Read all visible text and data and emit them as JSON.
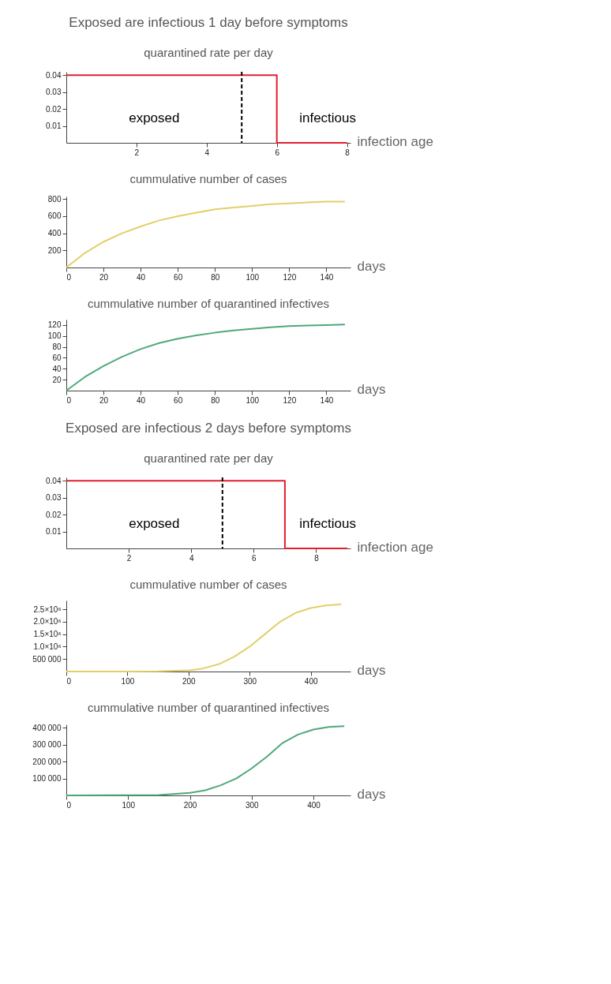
{
  "chart_data": [
    {
      "type": "step",
      "title": "Exposed are infectious 1 day before symptoms",
      "subtitle": "quarantined rate per day",
      "xlabel": "infection age",
      "x": [
        0,
        6,
        8
      ],
      "series": [
        {
          "color": "#e0202f",
          "values": [
            0.04,
            0,
            0
          ]
        }
      ],
      "xlim": [
        0,
        8.1
      ],
      "xticks": [
        2,
        4,
        6,
        8
      ],
      "ylim": [
        0,
        0.042
      ],
      "yticks": [
        0.01,
        0.02,
        0.03,
        0.04
      ],
      "ref_lines": [
        {
          "axis": "x",
          "value": 5,
          "color": "#000000",
          "line_style": "dashed"
        }
      ],
      "annotations": [
        "exposed",
        "infectious"
      ],
      "grid": false,
      "marker": "none",
      "line_style": "solid"
    },
    {
      "type": "line",
      "title": "cummulative number of cases",
      "xlabel": "days",
      "x": [
        0,
        10,
        20,
        30,
        40,
        50,
        60,
        70,
        80,
        90,
        100,
        110,
        120,
        130,
        140,
        150
      ],
      "series": [
        {
          "color": "#e3cf6a",
          "values": [
            0,
            170,
            300,
            400,
            480,
            550,
            600,
            640,
            680,
            700,
            720,
            740,
            750,
            760,
            770,
            770
          ]
        }
      ],
      "xlim": [
        0,
        153
      ],
      "xticks": [
        0,
        20,
        40,
        60,
        80,
        100,
        120,
        140
      ],
      "ylim": [
        0,
        830
      ],
      "yticks": [
        200,
        400,
        600,
        800
      ],
      "grid": false,
      "marker": "none",
      "line_style": "solid"
    },
    {
      "type": "line",
      "title": "cummulative number of quarantined infectives",
      "xlabel": "days",
      "x": [
        0,
        10,
        20,
        30,
        40,
        50,
        60,
        70,
        80,
        90,
        100,
        110,
        120,
        130,
        140,
        150
      ],
      "series": [
        {
          "color": "#4fa87a",
          "values": [
            0,
            25,
            45,
            62,
            76,
            87,
            95,
            101,
            106,
            110,
            113,
            116,
            118,
            119,
            120,
            121
          ]
        }
      ],
      "xlim": [
        0,
        153
      ],
      "xticks": [
        0,
        20,
        40,
        60,
        80,
        100,
        120,
        140
      ],
      "ylim": [
        0,
        130
      ],
      "yticks": [
        20,
        40,
        60,
        80,
        100,
        120
      ],
      "grid": false,
      "marker": "none",
      "line_style": "solid"
    },
    {
      "type": "step",
      "title": "Exposed are infectious 2 days before symptoms",
      "subtitle": "quarantined rate per day",
      "xlabel": "infection age",
      "x": [
        0,
        7,
        9
      ],
      "series": [
        {
          "color": "#e0202f",
          "values": [
            0.04,
            0,
            0
          ]
        }
      ],
      "xlim": [
        0,
        9.1
      ],
      "xticks": [
        2,
        4,
        6,
        8
      ],
      "ylim": [
        0,
        0.042
      ],
      "yticks": [
        0.01,
        0.02,
        0.03,
        0.04
      ],
      "ref_lines": [
        {
          "axis": "x",
          "value": 5,
          "color": "#000000",
          "line_style": "dashed"
        }
      ],
      "annotations": [
        "exposed",
        "infectious"
      ],
      "grid": false,
      "marker": "none",
      "line_style": "solid"
    },
    {
      "type": "line",
      "title": "cummulative number of cases",
      "xlabel": "days",
      "x": [
        0,
        100,
        150,
        200,
        220,
        250,
        275,
        300,
        325,
        350,
        375,
        400,
        425,
        450
      ],
      "series": [
        {
          "color": "#e3cf6a",
          "values": [
            0,
            0,
            10000,
            50000,
            100000,
            300000,
            600000,
            1000000,
            1500000,
            2000000,
            2350000,
            2550000,
            2650000,
            2700000
          ]
        }
      ],
      "xlim": [
        0,
        465
      ],
      "xticks": [
        0,
        100,
        200,
        300,
        400
      ],
      "ylim": [
        0,
        2850000
      ],
      "yticks": [
        {
          "value": 500000,
          "label": "500 000"
        },
        {
          "value": 1000000,
          "label": "1.0×10⁶"
        },
        {
          "value": 1500000,
          "label": "1.5×10⁶"
        },
        {
          "value": 2000000,
          "label": "2.0×10⁶"
        },
        {
          "value": 2500000,
          "label": "2.5×10⁶"
        }
      ],
      "grid": false,
      "marker": "none",
      "line_style": "solid"
    },
    {
      "type": "line",
      "title": "cummulative number of quarantined infectives",
      "xlabel": "days",
      "x": [
        0,
        150,
        200,
        225,
        250,
        275,
        300,
        325,
        350,
        375,
        400,
        425,
        450
      ],
      "series": [
        {
          "color": "#4fa87a",
          "values": [
            0,
            2000,
            15000,
            30000,
            60000,
            100000,
            160000,
            230000,
            310000,
            360000,
            390000,
            405000,
            410000
          ]
        }
      ],
      "xlim": [
        0,
        460
      ],
      "xticks": [
        0,
        100,
        200,
        300,
        400
      ],
      "ylim": [
        0,
        420000
      ],
      "yticks": [
        {
          "value": 100000,
          "label": "100 000"
        },
        {
          "value": 200000,
          "label": "200 000"
        },
        {
          "value": 300000,
          "label": "300 000"
        },
        {
          "value": 400000,
          "label": "400 000"
        }
      ],
      "grid": false,
      "marker": "none",
      "line_style": "solid"
    }
  ]
}
